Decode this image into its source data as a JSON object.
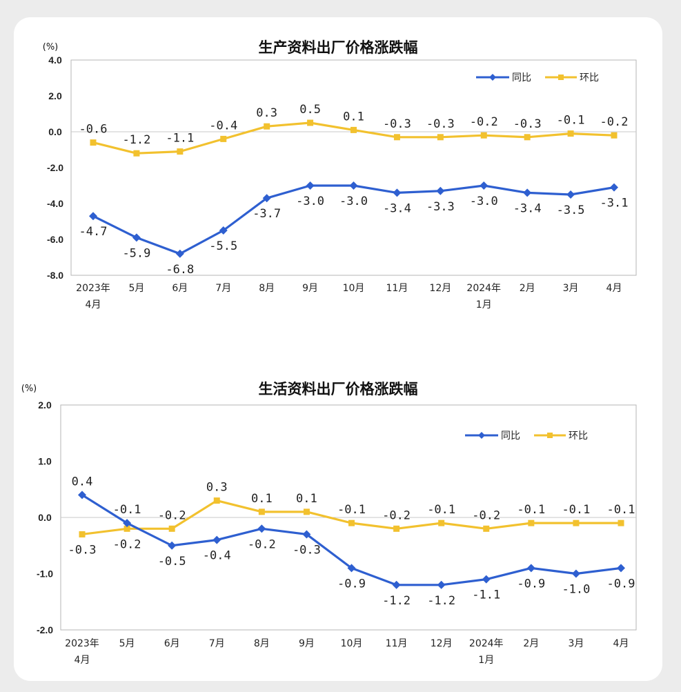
{
  "chart_data": [
    {
      "type": "line",
      "title": "生产资料出厂价格涨跌幅",
      "unit_label": "(%)",
      "categories": [
        [
          "2023年",
          "4月"
        ],
        [
          "5月"
        ],
        [
          "6月"
        ],
        [
          "7月"
        ],
        [
          "8月"
        ],
        [
          "9月"
        ],
        [
          "10月"
        ],
        [
          "11月"
        ],
        [
          "12月"
        ],
        [
          "2024年",
          "1月"
        ],
        [
          "2月"
        ],
        [
          "3月"
        ],
        [
          "4月"
        ]
      ],
      "ylim": [
        -8.0,
        4.0
      ],
      "yticks": [
        "4.0",
        "2.0",
        "0.0",
        "-2.0",
        "-4.0",
        "-6.0",
        "-8.0"
      ],
      "ytick_values": [
        4,
        2,
        0,
        -2,
        -4,
        -6,
        -8
      ],
      "grid": false,
      "legend_position": "top-right",
      "series": [
        {
          "name": "同比",
          "color": "#2e5fd0",
          "marker": "diamond",
          "values": [
            -4.7,
            -5.9,
            -6.8,
            -5.5,
            -3.7,
            -3.0,
            -3.0,
            -3.4,
            -3.3,
            -3.0,
            -3.4,
            -3.5,
            -3.1
          ],
          "labels": [
            "-4.7",
            "-5.9",
            "-6.8",
            "-5.5",
            "-3.7",
            "-3.0",
            "-3.0",
            "-3.4",
            "-3.3",
            "-3.0",
            "-3.4",
            "-3.5",
            "-3.1"
          ],
          "label_pos": [
            "below",
            "below",
            "below",
            "below",
            "below",
            "below",
            "below",
            "below",
            "below",
            "below",
            "below",
            "below",
            "below"
          ]
        },
        {
          "name": "环比",
          "color": "#f2c12e",
          "marker": "square",
          "values": [
            -0.6,
            -1.2,
            -1.1,
            -0.4,
            0.3,
            0.5,
            0.1,
            -0.3,
            -0.3,
            -0.2,
            -0.3,
            -0.1,
            -0.2
          ],
          "labels": [
            "-0.6",
            "-1.2",
            "-1.1",
            "-0.4",
            "0.3",
            "0.5",
            "0.1",
            "-0.3",
            "-0.3",
            "-0.2",
            "-0.3",
            "-0.1",
            "-0.2"
          ],
          "label_pos": [
            "above",
            "above",
            "above",
            "above",
            "above",
            "above",
            "above",
            "above",
            "above",
            "above",
            "above",
            "above",
            "above"
          ]
        }
      ]
    },
    {
      "type": "line",
      "title": "生活资料出厂价格涨跌幅",
      "unit_label": "(%)",
      "categories": [
        [
          "2023年",
          "4月"
        ],
        [
          "5月"
        ],
        [
          "6月"
        ],
        [
          "7月"
        ],
        [
          "8月"
        ],
        [
          "9月"
        ],
        [
          "10月"
        ],
        [
          "11月"
        ],
        [
          "12月"
        ],
        [
          "2024年",
          "1月"
        ],
        [
          "2月"
        ],
        [
          "3月"
        ],
        [
          "4月"
        ]
      ],
      "ylim": [
        -2.0,
        2.0
      ],
      "yticks": [
        "2.0",
        "1.0",
        "0.0",
        "-1.0",
        "-2.0"
      ],
      "ytick_values": [
        2,
        1,
        0,
        -1,
        -2
      ],
      "grid": false,
      "legend_position": "top-right",
      "series": [
        {
          "name": "同比",
          "color": "#2e5fd0",
          "marker": "diamond",
          "values": [
            0.4,
            -0.1,
            -0.5,
            -0.4,
            -0.2,
            -0.3,
            -0.9,
            -1.2,
            -1.2,
            -1.1,
            -0.9,
            -1.0,
            -0.9
          ],
          "labels": [
            "0.4",
            "-0.1",
            "-0.5",
            "-0.4",
            "-0.2",
            "-0.3",
            "-0.9",
            "-1.2",
            "-1.2",
            "-1.1",
            "-0.9",
            "-1.0",
            "-0.9"
          ],
          "label_pos": [
            "above",
            "above",
            "below",
            "below",
            "below",
            "below",
            "below",
            "below",
            "below",
            "below",
            "below",
            "below",
            "below"
          ]
        },
        {
          "name": "环比",
          "color": "#f2c12e",
          "marker": "square",
          "values": [
            -0.3,
            -0.2,
            -0.2,
            0.3,
            0.1,
            0.1,
            -0.1,
            -0.2,
            -0.1,
            -0.2,
            -0.1,
            -0.1,
            -0.1
          ],
          "labels": [
            "-0.3",
            "-0.2",
            "-0.2",
            "0.3",
            "0.1",
            "0.1",
            "-0.1",
            "-0.2",
            "-0.1",
            "-0.2",
            "-0.1",
            "-0.1",
            "-0.1"
          ],
          "label_pos": [
            "below",
            "below",
            "above",
            "above",
            "above",
            "above",
            "above",
            "above",
            "above",
            "above",
            "above",
            "above",
            "above"
          ]
        }
      ]
    }
  ]
}
